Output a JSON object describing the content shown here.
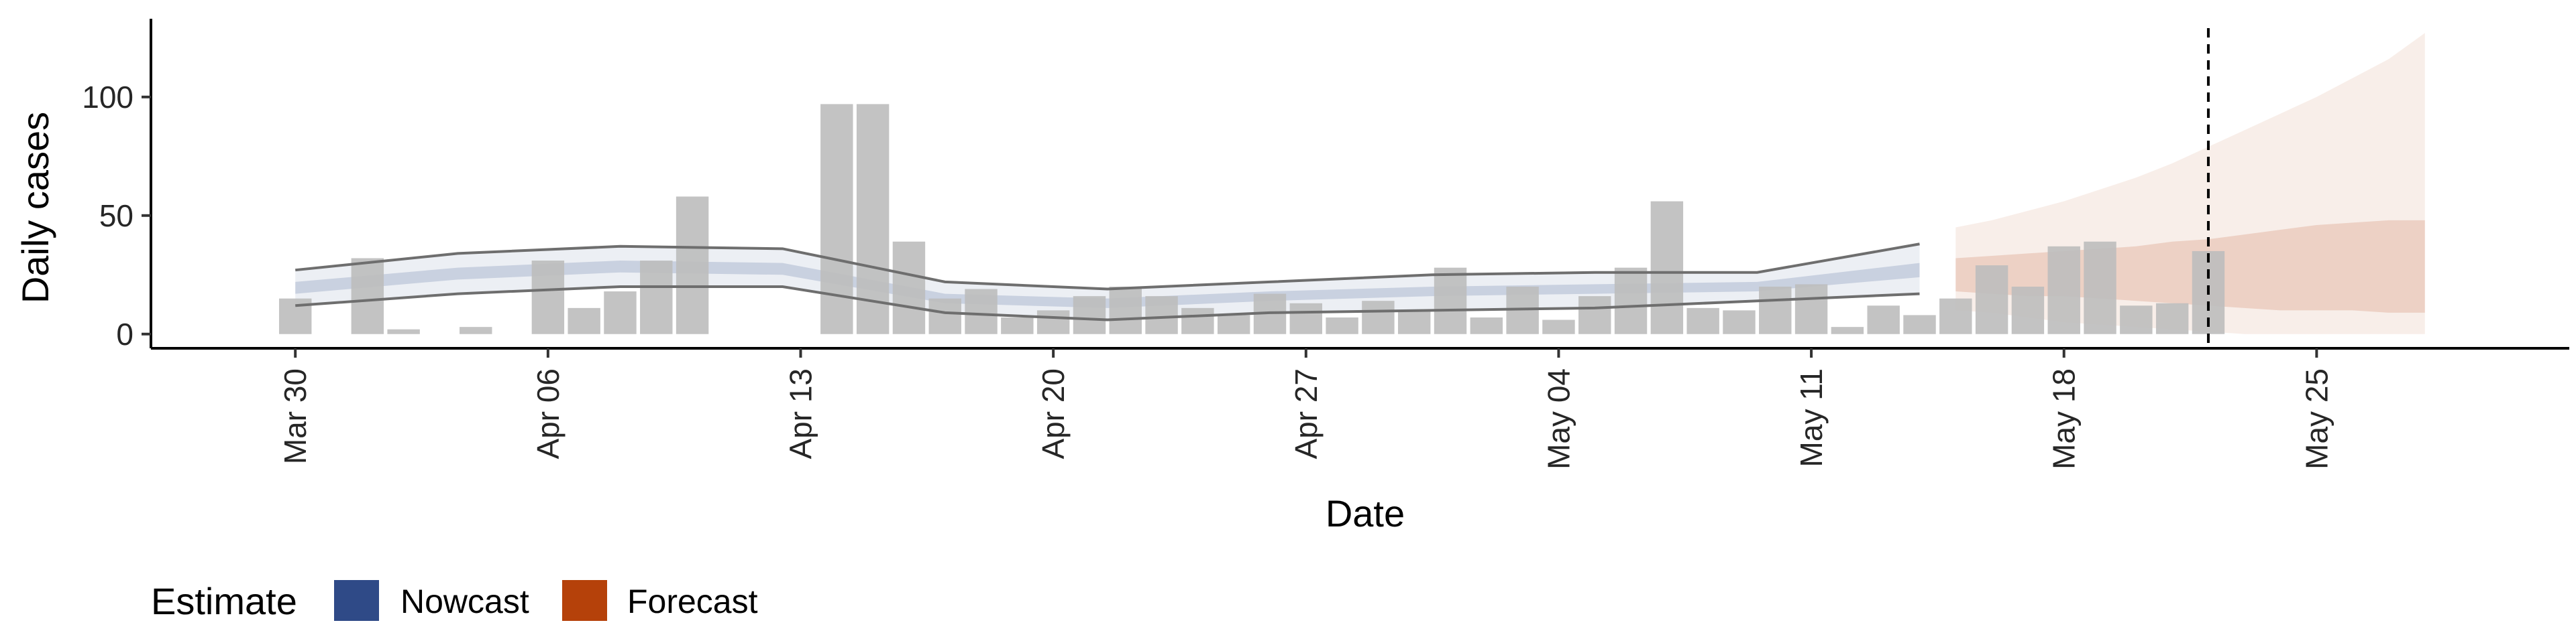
{
  "chart_data": {
    "type": "bar",
    "xlabel": "Date",
    "ylabel": "Daily cases",
    "x_ticks": [
      "Mar 30",
      "Apr 06",
      "Apr 13",
      "Apr 20",
      "Apr 27",
      "May 04",
      "May 11",
      "May 18",
      "May 25"
    ],
    "y_ticks": [
      0,
      50,
      100
    ],
    "xlim": [
      "2020-03-26",
      "2020-06-01"
    ],
    "ylim": [
      -6,
      133
    ],
    "grid": false,
    "colors": {
      "bars": "#bdbdbd",
      "nowcast": "#2f4a87",
      "forecast": "#b5410a",
      "outline": "#6e6e6e",
      "vline": "#000000"
    },
    "cases": {
      "start_date": "2020-03-30",
      "values": [
        15,
        0,
        32,
        2,
        0,
        3,
        0,
        31,
        11,
        18,
        31,
        58,
        0,
        0,
        0,
        97,
        97,
        39,
        15,
        19,
        7,
        10,
        16,
        20,
        16,
        11,
        8,
        17,
        13,
        7,
        14,
        10,
        28,
        7,
        20,
        6,
        16,
        28,
        56,
        11,
        10,
        20,
        21,
        3,
        12,
        8,
        15,
        29,
        20,
        37,
        39,
        12,
        13,
        35
      ]
    },
    "nowcast": {
      "start_date": "2020-03-30",
      "end_date": "2020-05-14",
      "outer_lower": [
        12,
        17,
        20,
        20,
        9,
        6,
        9,
        10,
        11,
        14,
        17
      ],
      "outer_upper": [
        27,
        34,
        37,
        36,
        22,
        19,
        22,
        25,
        26,
        26,
        38
      ],
      "inner_lower": [
        17,
        23,
        26,
        25,
        13,
        11,
        14,
        16,
        17,
        18,
        24
      ],
      "inner_upper": [
        22,
        28,
        31,
        30,
        17,
        15,
        18,
        20,
        21,
        22,
        30
      ]
    },
    "forecast": {
      "start_date": "2020-05-15",
      "end_date": "2020-05-28",
      "outer_lower": [
        10,
        9,
        7,
        5,
        4,
        3,
        2,
        1,
        0,
        0,
        0,
        0,
        0,
        0
      ],
      "outer_upper": [
        45,
        48,
        52,
        56,
        61,
        66,
        72,
        79,
        86,
        93,
        100,
        108,
        116,
        127
      ],
      "inner_lower": [
        18,
        17,
        16,
        16,
        15,
        14,
        13,
        12,
        11,
        10,
        10,
        10,
        9,
        9
      ],
      "inner_upper": [
        32,
        33,
        34,
        35,
        36,
        37,
        39,
        40,
        42,
        44,
        46,
        47,
        48,
        48
      ]
    },
    "vline_date": "2020-05-22",
    "legend": {
      "title": "Estimate",
      "position": "bottom-left",
      "items": [
        {
          "label": "Nowcast",
          "color": "#2f4a87"
        },
        {
          "label": "Forecast",
          "color": "#b5410a"
        }
      ]
    }
  }
}
